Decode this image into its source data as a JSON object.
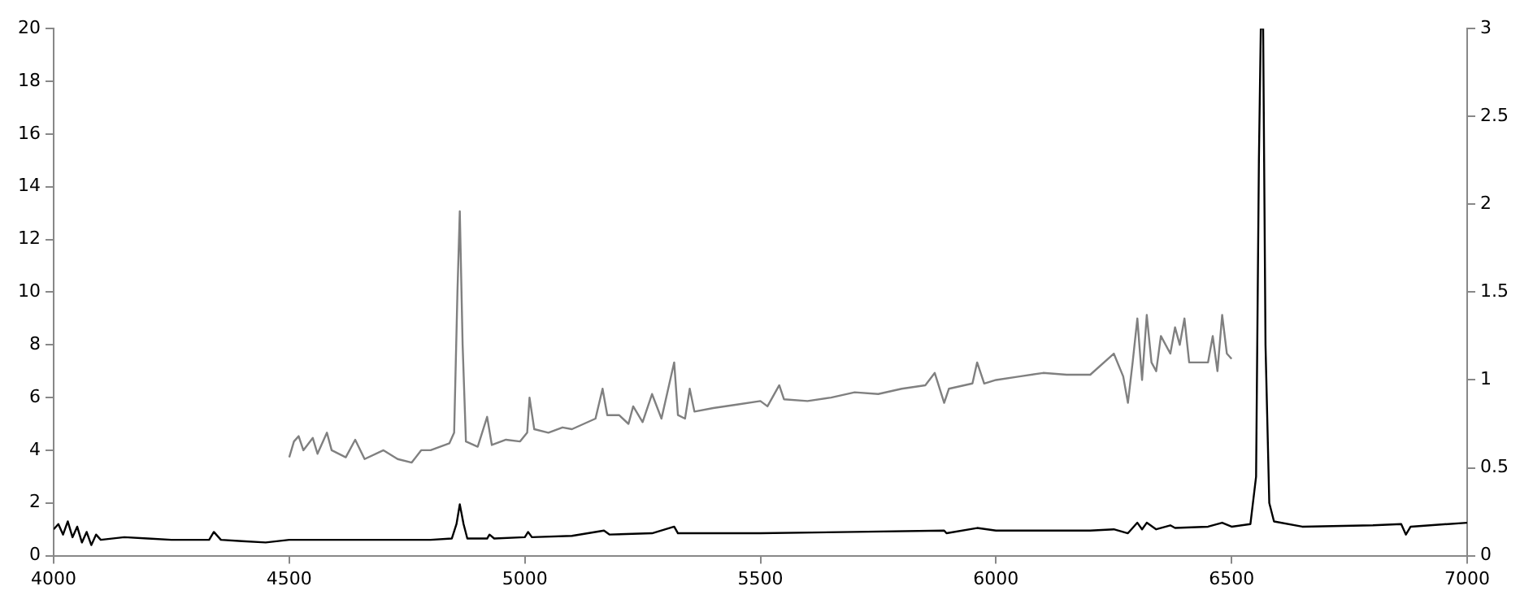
{
  "chart_data": {
    "type": "line",
    "xlim": [
      4000,
      7000
    ],
    "xticks": [
      4000,
      4500,
      5000,
      5500,
      6000,
      6500,
      7000
    ],
    "ylim": [
      0,
      20
    ],
    "yticks": [
      0,
      2,
      4,
      6,
      8,
      10,
      12,
      14,
      16,
      18,
      20
    ],
    "y2lim": [
      0,
      3
    ],
    "y2ticks": [
      0,
      0.5,
      1,
      1.5,
      2,
      2.5,
      3
    ],
    "grid": false,
    "legend": false,
    "marker": "none",
    "series": [
      {
        "color": "#000000",
        "x": [
          4000,
          4010,
          4020,
          4030,
          4040,
          4050,
          4060,
          4070,
          4080,
          4090,
          4100,
          4150,
          4200,
          4250,
          4300,
          4330,
          4340,
          4355,
          4400,
          4450,
          4500,
          4600,
          4700,
          4800,
          4845,
          4855,
          4862,
          4870,
          4878,
          4920,
          4925,
          4935,
          5000,
          5007,
          5015,
          5100,
          5168,
          5180,
          5270,
          5317,
          5325,
          5400,
          5500,
          5700,
          5890,
          5895,
          5960,
          6000,
          6200,
          6250,
          6280,
          6300,
          6310,
          6320,
          6340,
          6370,
          6380,
          6450,
          6480,
          6500,
          6540,
          6552,
          6558,
          6562,
          6567,
          6572,
          6580,
          6590,
          6650,
          6800,
          6860,
          6870,
          6880,
          7000
        ],
        "values": [
          1.0,
          1.2,
          0.8,
          1.3,
          0.7,
          1.1,
          0.5,
          0.9,
          0.4,
          0.8,
          0.6,
          0.7,
          0.65,
          0.6,
          0.6,
          0.6,
          0.9,
          0.6,
          0.55,
          0.5,
          0.6,
          0.6,
          0.6,
          0.6,
          0.65,
          1.2,
          1.95,
          1.2,
          0.65,
          0.65,
          0.8,
          0.65,
          0.7,
          0.9,
          0.7,
          0.75,
          0.95,
          0.8,
          0.85,
          1.1,
          0.85,
          0.85,
          0.85,
          0.9,
          0.95,
          0.85,
          1.05,
          0.95,
          0.95,
          1.0,
          0.85,
          1.25,
          1.0,
          1.25,
          1.0,
          1.15,
          1.05,
          1.1,
          1.25,
          1.1,
          1.2,
          3,
          15,
          20,
          20,
          8,
          2,
          1.3,
          1.1,
          1.15,
          1.2,
          0.8,
          1.1,
          1.25
        ]
      },
      {
        "color": "#808080",
        "axis": "y2",
        "x": [
          4500,
          4510,
          4520,
          4530,
          4550,
          4560,
          4580,
          4590,
          4620,
          4640,
          4660,
          4700,
          4730,
          4760,
          4780,
          4800,
          4840,
          4850,
          4857,
          4862,
          4868,
          4875,
          4900,
          4920,
          4930,
          4960,
          4990,
          5005,
          5010,
          5020,
          5050,
          5080,
          5100,
          5150,
          5165,
          5175,
          5200,
          5220,
          5230,
          5250,
          5270,
          5290,
          5317,
          5325,
          5340,
          5350,
          5360,
          5400,
          5450,
          5500,
          5515,
          5540,
          5550,
          5600,
          5650,
          5700,
          5750,
          5800,
          5850,
          5870,
          5890,
          5900,
          5950,
          5960,
          5975,
          6000,
          6050,
          6100,
          6150,
          6200,
          6250,
          6270,
          6280,
          6290,
          6300,
          6310,
          6320,
          6330,
          6340,
          6350,
          6370,
          6380,
          6390,
          6400,
          6410,
          6450,
          6460,
          6470,
          6480,
          6490,
          6500
        ],
        "values": [
          0.56,
          0.65,
          0.68,
          0.6,
          0.67,
          0.58,
          0.7,
          0.6,
          0.56,
          0.66,
          0.55,
          0.6,
          0.55,
          0.53,
          0.6,
          0.6,
          0.64,
          0.7,
          1.5,
          1.96,
          1.2,
          0.65,
          0.62,
          0.79,
          0.63,
          0.66,
          0.65,
          0.7,
          0.9,
          0.72,
          0.7,
          0.73,
          0.72,
          0.78,
          0.95,
          0.8,
          0.8,
          0.75,
          0.85,
          0.76,
          0.92,
          0.78,
          1.1,
          0.8,
          0.78,
          0.95,
          0.82,
          0.84,
          0.86,
          0.88,
          0.85,
          0.97,
          0.89,
          0.88,
          0.9,
          0.93,
          0.92,
          0.95,
          0.97,
          1.04,
          0.87,
          0.95,
          0.98,
          1.1,
          0.98,
          1.0,
          1.02,
          1.04,
          1.03,
          1.03,
          1.15,
          1.02,
          0.87,
          1.1,
          1.35,
          1.0,
          1.37,
          1.1,
          1.05,
          1.25,
          1.15,
          1.3,
          1.2,
          1.35,
          1.1,
          1.1,
          1.25,
          1.05,
          1.37,
          1.15,
          1.12
        ]
      }
    ]
  }
}
